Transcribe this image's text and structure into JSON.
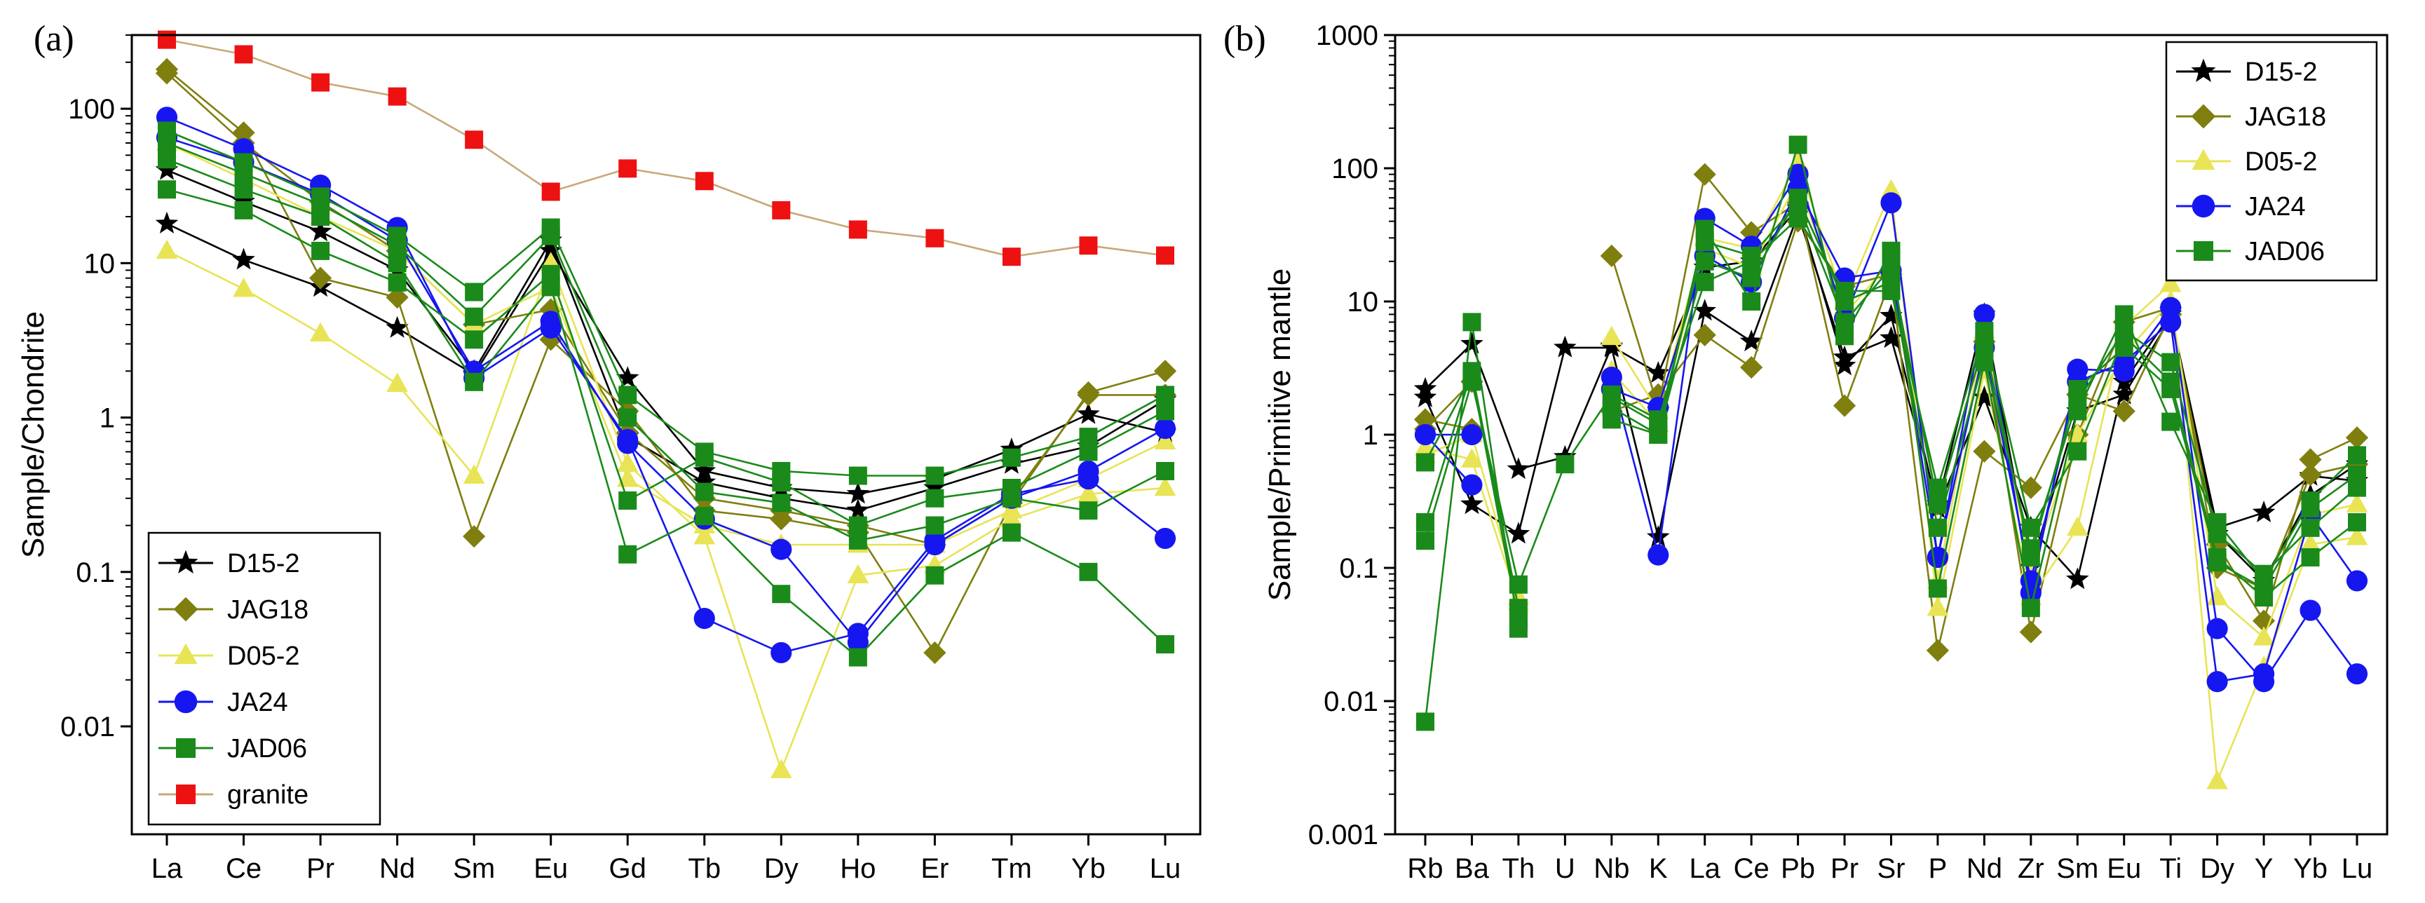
{
  "colors": {
    "D15-2": "#000000",
    "JAG18": "#7f7f0f",
    "D05-2": "#e8e455",
    "JA24": "#1616f0",
    "JAD06": "#1a8a1a",
    "granite": "#ee1111",
    "granite_line": "#c8a878"
  },
  "chart_data": [
    {
      "type": "line",
      "panel_label": "(a)",
      "ylabel": "Sample/Chondrite",
      "xlabel": "",
      "yscale": "log",
      "ylim": [
        0.002,
        300
      ],
      "y_ticks": [
        0.01,
        0.1,
        1,
        10,
        100
      ],
      "y_tick_labels": [
        "0.01",
        "0.1",
        "1",
        "10",
        "100"
      ],
      "categories": [
        "La",
        "Ce",
        "Pr",
        "Nd",
        "Sm",
        "Eu",
        "Gd",
        "Tb",
        "Dy",
        "Ho",
        "Er",
        "Tm",
        "Yb",
        "Lu"
      ],
      "legend": [
        "D15-2",
        "JAG18",
        "D05-2",
        "JA24",
        "JAD06",
        "granite"
      ],
      "legend_position": "bottom-left",
      "series": [
        {
          "name": "D15-2",
          "marker": "star",
          "values": [
            18,
            10.5,
            7,
            3.8,
            1.9,
            12,
            1.8,
            0.45,
            0.35,
            0.32,
            0.4,
            0.62,
            1.05,
            0.8
          ]
        },
        {
          "name": "D15-2",
          "marker": "star",
          "values": [
            40,
            25,
            16,
            9,
            2,
            14,
            0.75,
            0.38,
            0.3,
            0.25,
            0.35,
            0.5,
            0.65,
            1.3
          ]
        },
        {
          "name": "JAG18",
          "marker": "diamond",
          "values": [
            180,
            70,
            8,
            6,
            0.17,
            3.2,
            1.1,
            0.25,
            0.22,
            0.18,
            0.03,
            0.28,
            1.45,
            2
          ]
        },
        {
          "name": "JAG18",
          "marker": "diamond",
          "values": [
            170,
            60,
            25,
            12,
            4,
            5,
            0.8,
            0.3,
            0.25,
            0.2,
            0.15,
            0.3,
            1.4,
            1.4
          ]
        },
        {
          "name": "D05-2",
          "marker": "triangle",
          "values": [
            12,
            6.8,
            3.5,
            1.65,
            0.42,
            10,
            0.5,
            0.17,
            0.0052,
            0.095,
            0.11,
            0.22,
            0.32,
            0.35
          ]
        },
        {
          "name": "D05-2",
          "marker": "triangle",
          "values": [
            60,
            35,
            20,
            12,
            4,
            7,
            0.4,
            0.2,
            0.15,
            0.15,
            0.15,
            0.25,
            0.4,
            0.7
          ]
        },
        {
          "name": "JA24",
          "marker": "circle",
          "values": [
            88,
            55,
            32,
            17,
            1.8,
            3.8,
            0.72,
            0.05,
            0.03,
            0.04,
            0.16,
            0.32,
            0.4,
            0.165
          ]
        },
        {
          "name": "JA24",
          "marker": "circle",
          "values": [
            65,
            45,
            28,
            14,
            2,
            4.2,
            0.68,
            0.22,
            0.14,
            0.035,
            0.15,
            0.3,
            0.45,
            0.85
          ]
        },
        {
          "name": "JAD06",
          "marker": "square",
          "values": [
            72,
            45,
            27,
            15,
            6.5,
            17,
            1.4,
            0.6,
            0.45,
            0.42,
            0.42,
            0.55,
            0.75,
            1.4
          ]
        },
        {
          "name": "JAD06",
          "marker": "square",
          "values": [
            47,
            30,
            20,
            10,
            1.7,
            7,
            0.13,
            0.23,
            0.072,
            0.028,
            0.095,
            0.18,
            0.1,
            0.034
          ]
        },
        {
          "name": "JAD06",
          "marker": "square",
          "values": [
            30,
            22,
            12,
            7.5,
            3.2,
            8.5,
            0.29,
            0.55,
            0.38,
            0.2,
            0.3,
            0.35,
            0.6,
            1.1
          ]
        },
        {
          "name": "JAD06",
          "marker": "square",
          "values": [
            60,
            38,
            24,
            13,
            4.5,
            15,
            1.0,
            0.33,
            0.28,
            0.16,
            0.2,
            0.3,
            0.25,
            0.45
          ]
        },
        {
          "name": "granite",
          "marker": "square",
          "values": [
            280,
            225,
            148,
            120,
            63,
            29,
            41,
            34,
            22,
            16.5,
            14.5,
            11,
            13,
            11.2
          ]
        }
      ]
    },
    {
      "type": "line",
      "panel_label": "(b)",
      "ylabel": "Sample/Primitive mantle",
      "xlabel": "",
      "yscale": "log",
      "ylim": [
        0.001,
        1000
      ],
      "y_ticks": [
        0.001,
        0.01,
        0.1,
        1,
        10,
        100,
        1000
      ],
      "y_tick_labels": [
        "0.001",
        "0.01",
        "0.1",
        "1",
        "10",
        "100",
        "1000"
      ],
      "categories": [
        "Rb",
        "Ba",
        "Th",
        "U",
        "Nb",
        "K",
        "La",
        "Ce",
        "Pb",
        "Pr",
        "Sr",
        "P",
        "Nd",
        "Zr",
        "Sm",
        "Eu",
        "Ti",
        "Dy",
        "Y",
        "Yb",
        "Lu"
      ],
      "legend": [
        "D15-2",
        "JAG18",
        "D05-2",
        "JA24",
        "JAD06"
      ],
      "legend_position": "top-right",
      "series": [
        {
          "name": "D15-2",
          "marker": "star",
          "values": [
            2.2,
            4.8,
            0.55,
            0.68,
            4.6,
            2.9,
            18,
            20,
            50,
            3.3,
            7.8,
            0.28,
            1.9,
            0.2,
            0.082,
            2.5,
            8,
            0.2,
            0.26,
            0.49,
            0.45
          ]
        },
        {
          "name": "D15-2",
          "marker": "star",
          "values": [
            1.9,
            0.3,
            0.18,
            4.5,
            4.5,
            0.17,
            8.5,
            5,
            45,
            3.8,
            5.3,
            0.3,
            8,
            0.1,
            1.5,
            2,
            7.5,
            0.18,
            0.08,
            0.35,
            0.6
          ]
        },
        {
          "name": "JAG18",
          "marker": "diamond",
          "values": [
            1.3,
            1.1,
            null,
            null,
            22,
            1.6,
            90,
            33,
            55,
            1.65,
            15,
            0.024,
            0.75,
            0.4,
            2,
            1.5,
            8,
            0.15,
            0.04,
            0.65,
            0.95
          ]
        },
        {
          "name": "JAG18",
          "marker": "diamond",
          "values": [
            1.1,
            2.5,
            null,
            null,
            1.5,
            2,
            5.6,
            3.2,
            40,
            13,
            16,
            0.3,
            5,
            0.033,
            1,
            7,
            9,
            0.1,
            0.07,
            0.5,
            0.6
          ]
        },
        {
          "name": "D05-2",
          "marker": "triangle",
          "values": [
            0.8,
            0.65,
            0.055,
            null,
            5.4,
            1.5,
            30,
            25,
            110,
            10,
            68,
            0.05,
            3,
            0.06,
            0.2,
            6.5,
            13.5,
            0.0025,
            0.018,
            0.15,
            0.17
          ]
        },
        {
          "name": "D05-2",
          "marker": "triangle",
          "values": [
            0.7,
            1.0,
            0.06,
            null,
            3,
            1.2,
            25,
            18,
            80,
            8,
            20,
            0.08,
            6,
            0.1,
            1,
            4,
            10,
            0.06,
            0.03,
            0.25,
            0.3
          ]
        },
        {
          "name": "JA24",
          "marker": "circle",
          "values": [
            1.0,
            0.42,
            null,
            null,
            2.7,
            0.125,
            42,
            26,
            90,
            7.5,
            55,
            0.12,
            8,
            0.065,
            3.1,
            3,
            9,
            0.035,
            0.014,
            0.048,
            0.016
          ]
        },
        {
          "name": "JA24",
          "marker": "circle",
          "values": [
            1.0,
            1.0,
            null,
            null,
            2.2,
            1.6,
            22,
            14,
            70,
            15,
            17,
            0.12,
            4.5,
            0.08,
            2.5,
            3.5,
            7,
            0.014,
            0.016,
            0.25,
            0.08
          ]
        },
        {
          "name": "JAD06",
          "marker": "square",
          "values": [
            0.007,
            7,
            0.035,
            null,
            1.3,
            1.0,
            35,
            10,
            150,
            5.5,
            24,
            0.07,
            3.5,
            0.05,
            1.5,
            8,
            1.25,
            0.22,
            0.08,
            0.32,
            0.7
          ]
        },
        {
          "name": "JAD06",
          "marker": "square",
          "values": [
            0.16,
            2.5,
            0.075,
            0.6,
            2,
            1.3,
            14,
            20,
            42,
            12,
            12,
            0.4,
            6,
            0.2,
            0.75,
            5.5,
            2.5,
            0.12,
            0.06,
            0.12,
            0.22
          ]
        },
        {
          "name": "JAD06",
          "marker": "square",
          "values": [
            0.22,
            3,
            0.05,
            null,
            1.6,
            1.0,
            20,
            15,
            60,
            10,
            14,
            0.2,
            3.8,
            0.14,
            1.8,
            6,
            3.5,
            0.18,
            0.09,
            0.2,
            0.4
          ]
        },
        {
          "name": "JAD06",
          "marker": "square",
          "values": [
            0.62,
            2.8,
            0.04,
            null,
            1.9,
            1.2,
            28,
            22,
            55,
            7,
            18,
            0.3,
            5,
            0.12,
            2.2,
            4.5,
            2.2,
            0.11,
            0.07,
            0.28,
            0.5
          ]
        }
      ]
    }
  ]
}
